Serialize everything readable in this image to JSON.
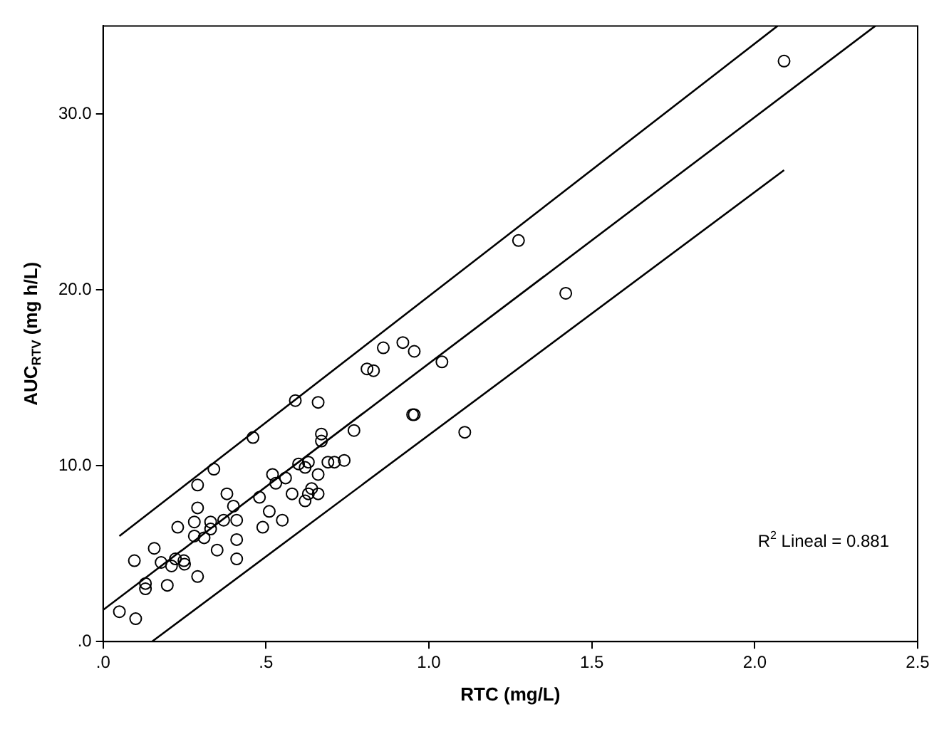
{
  "chart_data": {
    "type": "scatter",
    "xlabel": "RTC (mg/L)",
    "ylabel": "AUC$_{RTV}$ (mg h/L)",
    "xlim": [
      0,
      2.5
    ],
    "ylim": [
      0,
      35
    ],
    "xticks": [
      {
        "value": 0,
        "label": ".0"
      },
      {
        "value": 0.5,
        "label": ".5"
      },
      {
        "value": 1,
        "label": "1.0"
      },
      {
        "value": 1.5,
        "label": "1.5"
      },
      {
        "value": 2,
        "label": "2.0"
      },
      {
        "value": 2.5,
        "label": "2.5"
      }
    ],
    "yticks": [
      {
        "value": 0,
        "label": ".0"
      },
      {
        "value": 10,
        "label": "10.0"
      },
      {
        "value": 20,
        "label": "20.0"
      },
      {
        "value": 30,
        "label": "30.0"
      }
    ],
    "grid": false,
    "legend": false,
    "annotations": [
      "R$^{2}$ Lineal = 0.881"
    ],
    "series": [
      {
        "marker": "circle",
        "color": "#000000",
        "x": [
          0.05,
          0.1,
          0.096,
          0.13,
          0.13,
          0.157,
          0.178,
          0.197,
          0.21,
          0.222,
          0.248,
          0.25,
          0.229,
          0.29,
          0.29,
          0.29,
          0.28,
          0.28,
          0.31,
          0.33,
          0.33,
          0.34,
          0.35,
          0.37,
          0.38,
          0.4,
          0.41,
          0.41,
          0.41,
          0.46,
          0.48,
          0.49,
          0.51,
          0.52,
          0.53,
          0.55,
          0.56,
          0.58,
          0.59,
          0.6,
          0.62,
          0.63,
          0.62,
          0.63,
          0.64,
          0.66,
          0.66,
          0.66,
          0.67,
          0.67,
          0.69,
          0.71,
          0.74,
          0.77,
          0.81,
          0.83,
          0.86,
          0.92,
          0.955,
          1.04,
          0.95,
          0.955,
          1.11,
          1.275,
          1.42,
          2.09
        ],
        "values": [
          1.7,
          1.3,
          4.6,
          3.3,
          3.0,
          5.3,
          4.5,
          3.2,
          4.3,
          4.7,
          4.6,
          4.4,
          6.5,
          3.7,
          7.6,
          8.9,
          6.8,
          6.0,
          5.9,
          6.8,
          6.4,
          9.8,
          5.2,
          6.9,
          8.4,
          7.7,
          6.9,
          5.8,
          4.7,
          11.6,
          8.2,
          6.5,
          7.4,
          9.5,
          9.0,
          6.9,
          9.3,
          8.4,
          13.7,
          10.1,
          9.9,
          10.2,
          8.0,
          8.4,
          8.7,
          9.5,
          8.4,
          13.6,
          11.8,
          11.4,
          10.2,
          10.2,
          10.3,
          12.0,
          15.5,
          15.4,
          16.7,
          17.0,
          16.5,
          15.9,
          12.9,
          12.9,
          11.9,
          22.8,
          19.8,
          33.0
        ]
      },
      {
        "type": "line",
        "marker": "none",
        "color": "#000000",
        "x": [
          0.05,
          2.07
        ],
        "values": [
          6.0,
          35
        ]
      },
      {
        "type": "line",
        "marker": "none",
        "color": "#000000",
        "x": [
          0,
          2.37
        ],
        "values": [
          1.8,
          35
        ]
      },
      {
        "type": "line",
        "marker": "none",
        "color": "#000000",
        "x": [
          0.15,
          2.09
        ],
        "values": [
          0,
          26.8
        ]
      }
    ]
  }
}
